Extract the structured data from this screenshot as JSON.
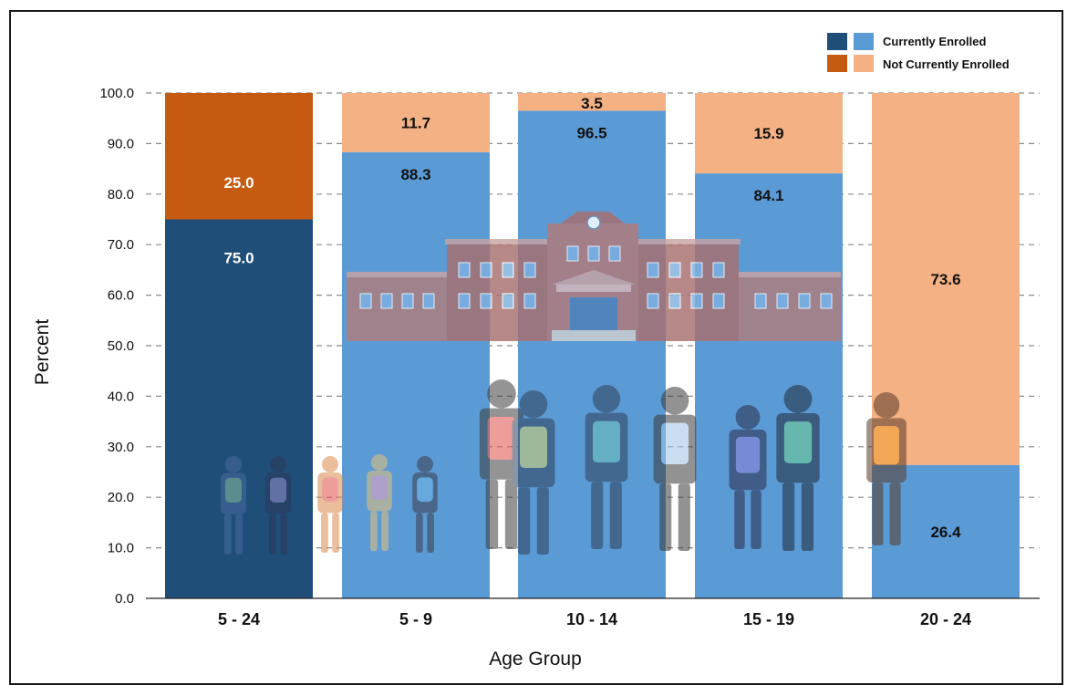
{
  "chart_data": {
    "type": "bar",
    "stacked": true,
    "categories": [
      "5 - 24",
      "5 - 9",
      "10 - 14",
      "15 - 19",
      "20 - 24"
    ],
    "series": [
      {
        "name": "Currently Enrolled",
        "values": [
          75.0,
          88.3,
          96.5,
          84.1,
          26.4
        ],
        "colors": [
          "#1f4e79",
          "#5b9bd5",
          "#5b9bd5",
          "#5b9bd5",
          "#5b9bd5"
        ],
        "label_colors": [
          "#ffffff",
          "#111111",
          "#111111",
          "#111111",
          "#111111"
        ]
      },
      {
        "name": "Not Currently Enrolled",
        "values": [
          25.0,
          11.7,
          3.5,
          15.9,
          73.6
        ],
        "colors": [
          "#c55a11",
          "#f4b183",
          "#f4b183",
          "#f4b183",
          "#f4b183"
        ],
        "label_colors": [
          "#ffffff",
          "#111111",
          "#111111",
          "#111111",
          "#111111"
        ]
      }
    ],
    "value_labels": {
      "enrolled": [
        "75.0",
        "88.3",
        "96.5",
        "84.1",
        "26.4"
      ],
      "not_enrolled": [
        "25.0",
        "11.7",
        "3.5",
        "15.9",
        "73.6"
      ]
    },
    "xlabel": "Age Group",
    "ylabel": "Percent",
    "ylim": [
      0,
      100
    ],
    "yticks": [
      "0.0",
      "10.0",
      "20.0",
      "30.0",
      "40.0",
      "50.0",
      "60.0",
      "70.0",
      "80.0",
      "90.0",
      "100.0"
    ],
    "grid": true,
    "legend_position": "top-right",
    "legend": [
      {
        "label": "Currently Enrolled",
        "swatches": [
          "#1f4e79",
          "#5b9bd5"
        ]
      },
      {
        "label": "Not Currently Enrolled",
        "swatches": [
          "#c55a11",
          "#f4b183"
        ]
      }
    ],
    "background_illustration": [
      "school-building",
      "students-with-backpacks"
    ]
  }
}
